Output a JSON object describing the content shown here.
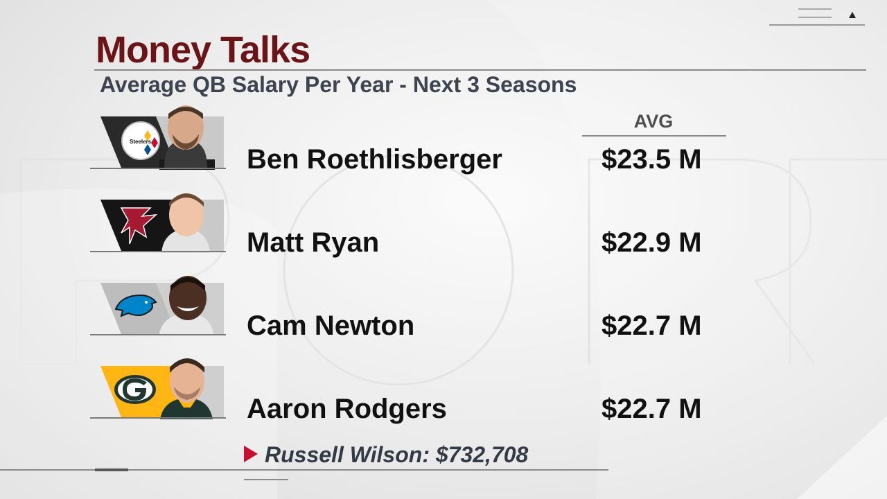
{
  "header": {
    "title": "Money Talks",
    "subtitle": "Average QB Salary Per Year - Next 3 Seasons"
  },
  "table": {
    "column_header": "AVG",
    "rows": [
      {
        "player": "Ben Roethlisberger",
        "salary": "$23.5 M",
        "team_icon": "steelers-logo-icon",
        "team_color": "#101820"
      },
      {
        "player": "Matt Ryan",
        "salary": "$22.9 M",
        "team_icon": "falcons-logo-icon",
        "team_color": "#111111"
      },
      {
        "player": "Cam Newton",
        "salary": "$22.7 M",
        "team_icon": "panthers-logo-icon",
        "team_color": "#0085CA"
      },
      {
        "player": "Aaron Rodgers",
        "salary": "$22.7 M",
        "team_icon": "packers-logo-icon",
        "team_color": "#FFB612"
      }
    ]
  },
  "footnote": {
    "text": "Russell Wilson: $732,708",
    "marker_color": "#c8102e"
  },
  "colors": {
    "title": "#6b1417",
    "subtitle": "#3d4450",
    "packers_green": "#203731"
  }
}
